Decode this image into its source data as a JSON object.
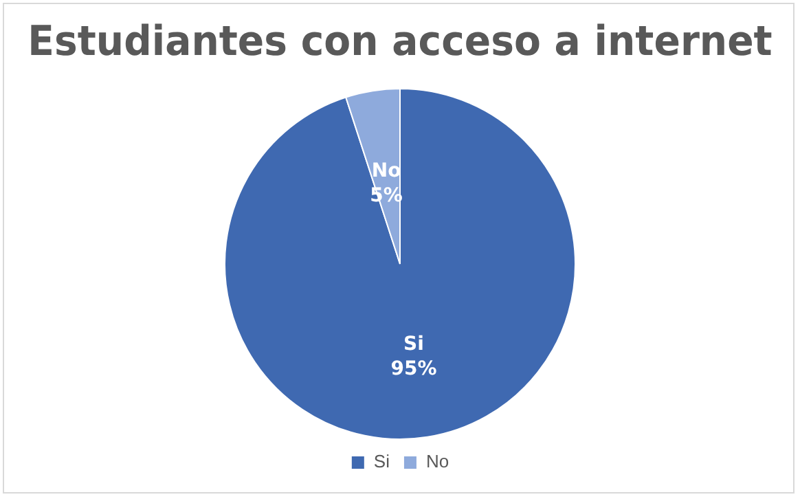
{
  "chart_data": {
    "type": "pie",
    "title": "Estudiantes con acceso a internet",
    "categories": [
      "Si",
      "No"
    ],
    "values": [
      95,
      5
    ],
    "colors": [
      "#3f69b1",
      "#8eaadc"
    ],
    "value_labels": [
      "95%",
      "5%"
    ],
    "legend": "bottom"
  }
}
